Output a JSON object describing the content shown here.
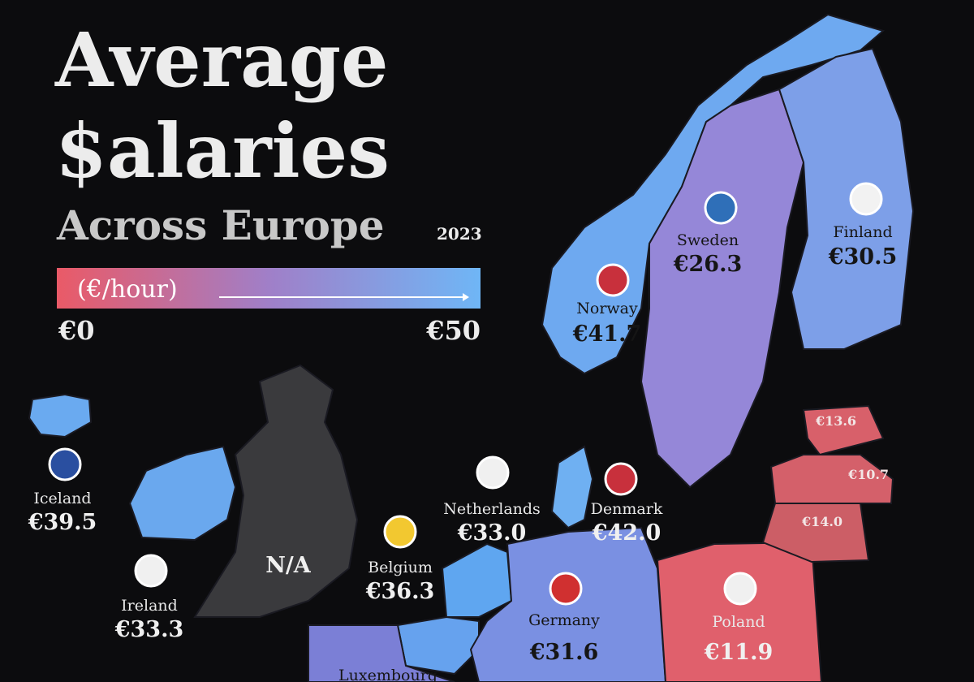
{
  "header": {
    "title_line1": "Average",
    "title_line2": "$alaries",
    "subtitle": "Across Europe",
    "year": "2023"
  },
  "legend": {
    "unit": "(€/hour)",
    "min": "€0",
    "max": "€50"
  },
  "regions": [
    {
      "name": "Norway",
      "value": "€41.7"
    },
    {
      "name": "Sweden",
      "value": "€26.3"
    },
    {
      "name": "Finland",
      "value": "€30.5"
    },
    {
      "name": "Iceland",
      "value": "€39.5"
    },
    {
      "name": "Ireland",
      "value": "€33.3"
    },
    {
      "value": "N/A"
    },
    {
      "name": "Netherlands",
      "value": "€33.0"
    },
    {
      "name": "Denmark",
      "value": "€42.0"
    },
    {
      "name": "Belgium",
      "value": "€36.3"
    },
    {
      "name": "Germany",
      "value": "€31.6"
    },
    {
      "name": "Poland",
      "value": "€11.9"
    },
    {
      "value": "€13.6"
    },
    {
      "value": "€10.7"
    },
    {
      "value": "€14.0"
    },
    {
      "name": "Luxembourg"
    }
  ]
}
